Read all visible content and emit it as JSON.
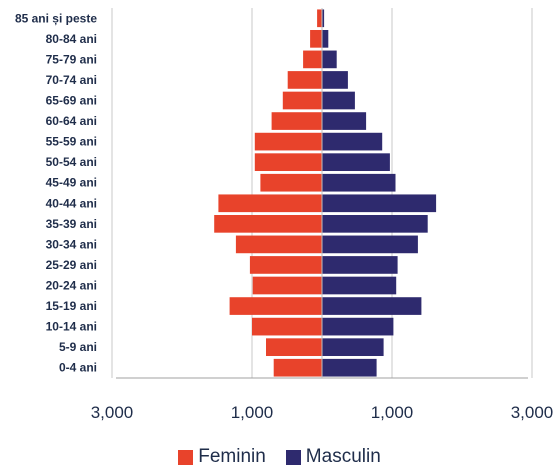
{
  "chart_data": {
    "type": "bar",
    "orientation": "horizontal-butterfly",
    "title": "",
    "xlabel": "",
    "ylabel": "",
    "xlim": [
      -3000,
      3000
    ],
    "x_ticks": [
      -3000,
      -1000,
      1000,
      3000
    ],
    "x_tick_labels": [
      "3,000",
      "1,000",
      "1,000",
      "3,000"
    ],
    "grid": true,
    "legend_position": "bottom",
    "categories": [
      "85 ani și peste",
      "80-84 ani",
      "75-79 ani",
      "70-74 ani",
      "65-69 ani",
      "60-64 ani",
      "55-59 ani",
      "50-54 ani",
      "45-49 ani",
      "40-44 ani",
      "35-39 ani",
      "30-34 ani",
      "25-29 ani",
      "20-24 ani",
      "15-19 ani",
      "10-14 ani",
      "5-9 ani",
      "0-4 ani"
    ],
    "series": [
      {
        "name": "Feminin",
        "color": "#e8432b",
        "side": "left",
        "values": [
          70,
          170,
          270,
          490,
          560,
          720,
          960,
          960,
          880,
          1480,
          1540,
          1230,
          1030,
          990,
          1320,
          1000,
          800,
          690
        ]
      },
      {
        "name": "Masculin",
        "color": "#2e2a6e",
        "side": "right",
        "values": [
          30,
          90,
          210,
          370,
          470,
          630,
          860,
          970,
          1050,
          1630,
          1510,
          1370,
          1080,
          1060,
          1420,
          1020,
          880,
          780
        ]
      }
    ]
  }
}
